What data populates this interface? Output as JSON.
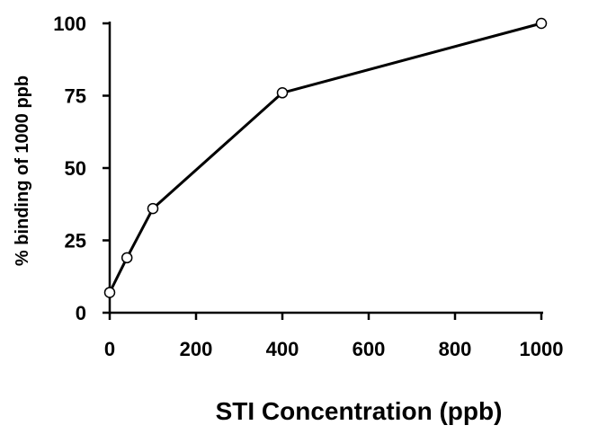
{
  "chart_data": {
    "type": "line",
    "title": "",
    "xlabel": "STI Concentration (ppb)",
    "ylabel": "% binding of 1000 ppb",
    "xlim": [
      0,
      1000
    ],
    "ylim": [
      0,
      100
    ],
    "x_ticks": [
      0,
      200,
      400,
      600,
      800,
      1000
    ],
    "y_ticks": [
      0,
      25,
      50,
      75,
      100
    ],
    "grid": false,
    "legend": "none",
    "line_color": "#000000",
    "marker_fill": "#ffffff",
    "series": [
      {
        "x": [
          0,
          40,
          100,
          400,
          1000
        ],
        "y": [
          7,
          19,
          36,
          76,
          100
        ]
      }
    ]
  }
}
